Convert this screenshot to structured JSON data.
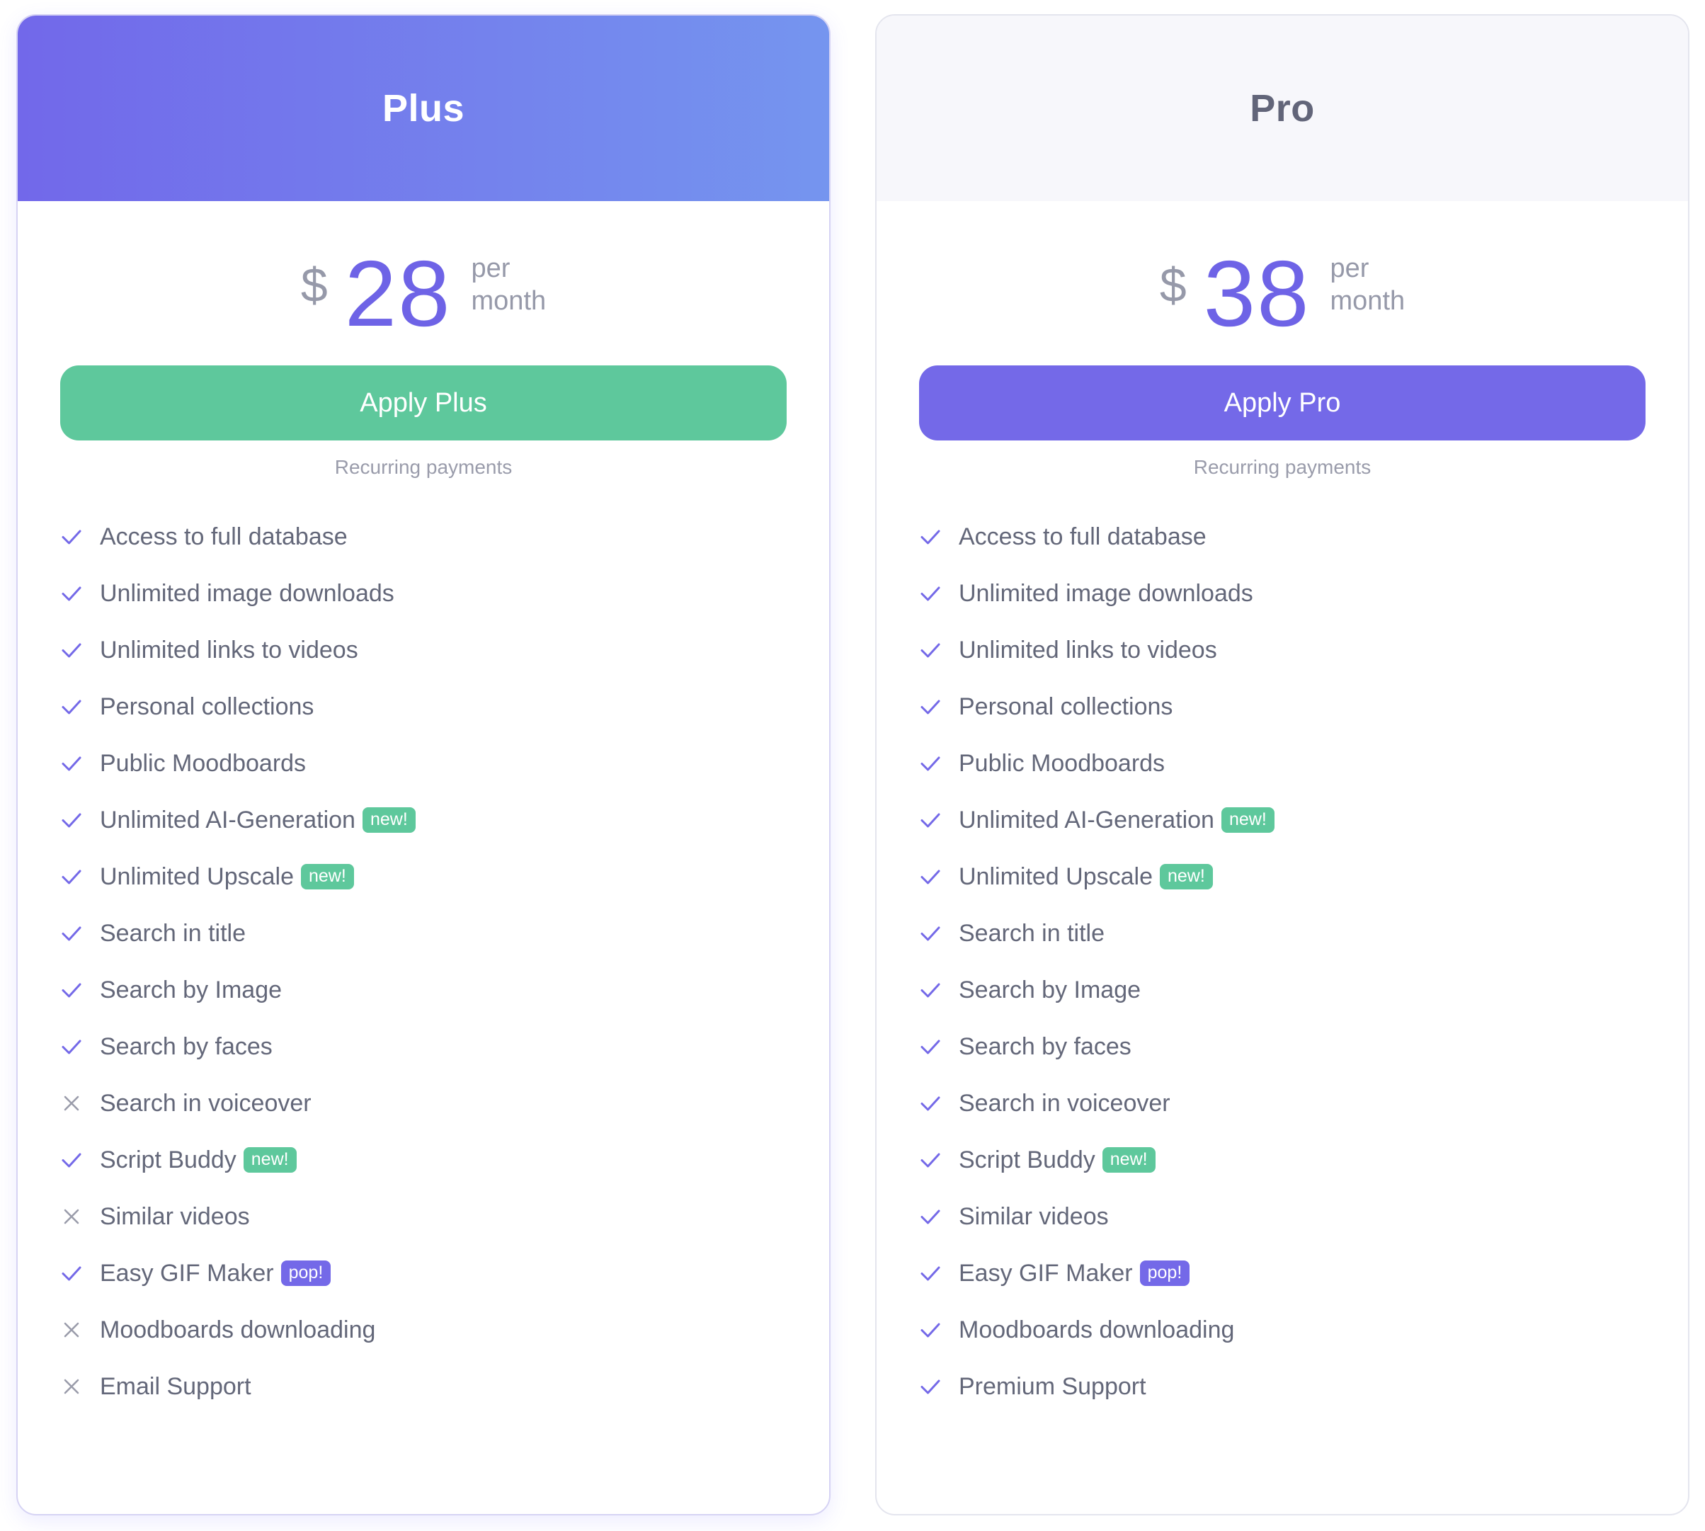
{
  "colors": {
    "accent": "#7469e8",
    "green": "#5ec89c",
    "muted": "#9699a9"
  },
  "plans": [
    {
      "name": "Plus",
      "currency": "$",
      "price": "28",
      "period_line1": "per",
      "period_line2": "month",
      "button_label": "Apply Plus",
      "note": "Recurring payments",
      "features": [
        {
          "label": "Access to full database",
          "included": true,
          "badge": ""
        },
        {
          "label": "Unlimited image downloads",
          "included": true,
          "badge": ""
        },
        {
          "label": "Unlimited links to videos",
          "included": true,
          "badge": ""
        },
        {
          "label": "Personal collections",
          "included": true,
          "badge": ""
        },
        {
          "label": "Public Moodboards",
          "included": true,
          "badge": ""
        },
        {
          "label": "Unlimited AI-Generation",
          "included": true,
          "badge": "new!"
        },
        {
          "label": "Unlimited Upscale",
          "included": true,
          "badge": "new!"
        },
        {
          "label": "Search in title",
          "included": true,
          "badge": ""
        },
        {
          "label": "Search by Image",
          "included": true,
          "badge": ""
        },
        {
          "label": "Search by faces",
          "included": true,
          "badge": ""
        },
        {
          "label": "Search in voiceover",
          "included": false,
          "badge": ""
        },
        {
          "label": "Script Buddy",
          "included": true,
          "badge": "new!"
        },
        {
          "label": "Similar videos",
          "included": false,
          "badge": ""
        },
        {
          "label": "Easy GIF Maker",
          "included": true,
          "badge": "pop!"
        },
        {
          "label": "Moodboards downloading",
          "included": false,
          "badge": ""
        },
        {
          "label": "Email Support",
          "included": false,
          "badge": ""
        }
      ]
    },
    {
      "name": "Pro",
      "currency": "$",
      "price": "38",
      "period_line1": "per",
      "period_line2": "month",
      "button_label": "Apply Pro",
      "note": "Recurring payments",
      "features": [
        {
          "label": "Access to full database",
          "included": true,
          "badge": ""
        },
        {
          "label": "Unlimited image downloads",
          "included": true,
          "badge": ""
        },
        {
          "label": "Unlimited links to videos",
          "included": true,
          "badge": ""
        },
        {
          "label": "Personal collections",
          "included": true,
          "badge": ""
        },
        {
          "label": "Public Moodboards",
          "included": true,
          "badge": ""
        },
        {
          "label": "Unlimited AI-Generation",
          "included": true,
          "badge": "new!"
        },
        {
          "label": "Unlimited Upscale",
          "included": true,
          "badge": "new!"
        },
        {
          "label": "Search in title",
          "included": true,
          "badge": ""
        },
        {
          "label": "Search by Image",
          "included": true,
          "badge": ""
        },
        {
          "label": "Search by faces",
          "included": true,
          "badge": ""
        },
        {
          "label": "Search in voiceover",
          "included": true,
          "badge": ""
        },
        {
          "label": "Script Buddy",
          "included": true,
          "badge": "new!"
        },
        {
          "label": "Similar videos",
          "included": true,
          "badge": ""
        },
        {
          "label": "Easy GIF Maker",
          "included": true,
          "badge": "pop!"
        },
        {
          "label": "Moodboards downloading",
          "included": true,
          "badge": ""
        },
        {
          "label": "Premium Support",
          "included": true,
          "badge": ""
        }
      ]
    }
  ]
}
